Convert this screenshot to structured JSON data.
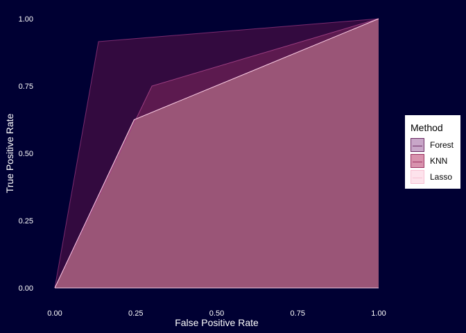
{
  "chart_data": {
    "type": "area",
    "xlabel": "False Positive Rate",
    "ylabel": "True Positive Rate",
    "xlim": [
      0,
      1
    ],
    "ylim": [
      0,
      1
    ],
    "x_ticks": [
      0,
      0.25,
      0.5,
      0.75,
      1
    ],
    "y_ticks": [
      0,
      0.25,
      0.5,
      0.75,
      1
    ],
    "x_tick_labels": [
      "0.00",
      "0.25",
      "0.50",
      "0.75",
      "1.00"
    ],
    "y_tick_labels": [
      "0.00",
      "0.25",
      "0.50",
      "0.75",
      "1.00"
    ],
    "grid": false,
    "legend": {
      "title": "Method",
      "position": "right"
    },
    "series": [
      {
        "name": "Forest",
        "color": "#330a3f",
        "line": "#7a2a6e",
        "x": [
          0,
          0.135,
          1
        ],
        "y": [
          0,
          0.915,
          1
        ]
      },
      {
        "name": "KNN",
        "color": "#5c1a4f",
        "line": "#9e3f82",
        "x": [
          0,
          0.3,
          1
        ],
        "y": [
          0,
          0.75,
          1
        ]
      },
      {
        "name": "Lasso",
        "color": "#9a5577",
        "line": "#ffd1e8",
        "x": [
          0,
          0.245,
          1
        ],
        "y": [
          0,
          0.625,
          1
        ]
      }
    ]
  },
  "legend_keys": [
    {
      "fill": "#c8a6c8",
      "border": "#6a2a62",
      "line": "#6a2a62"
    },
    {
      "fill": "#d892ad",
      "border": "#9a3060",
      "line": "#9a3060"
    },
    {
      "fill": "#fde3ec",
      "border": "#f7c1d3",
      "line": "#f7c1d3"
    }
  ],
  "colors": {
    "background": "#000033",
    "text": "#ffffff"
  }
}
